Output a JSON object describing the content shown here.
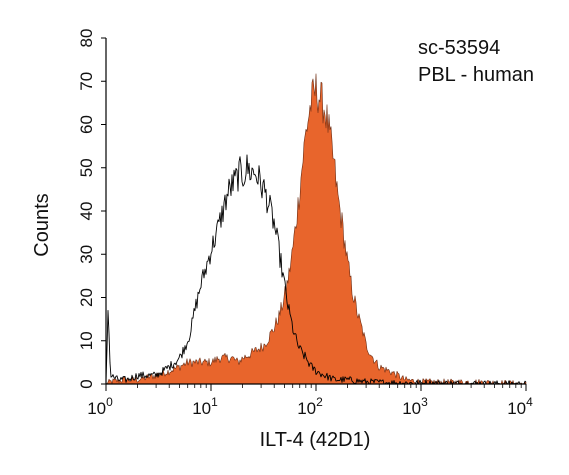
{
  "chart_data": {
    "type": "area",
    "xscale": "log",
    "xlim": [
      1,
      10000
    ],
    "ylim": [
      0,
      80
    ],
    "grid": false,
    "xlabel": "ILT-4 (42D1)",
    "ylabel": "Counts",
    "x_ticks": [
      {
        "value": 1,
        "base": "10",
        "exp": "0"
      },
      {
        "value": 10,
        "base": "10",
        "exp": "1"
      },
      {
        "value": 100,
        "base": "10",
        "exp": "2"
      },
      {
        "value": 1000,
        "base": "10",
        "exp": "3"
      },
      {
        "value": 10000,
        "base": "10",
        "exp": "4"
      }
    ],
    "y_ticks": [
      0,
      10,
      20,
      30,
      40,
      50,
      60,
      70,
      80
    ],
    "annotations": [
      "sc-53594",
      "PBL - human"
    ],
    "series": [
      {
        "style": "outline",
        "color": "#000000",
        "points": [
          [
            1.0,
            0
          ],
          [
            1.05,
            19
          ],
          [
            1.1,
            2
          ],
          [
            1.3,
            1
          ],
          [
            1.6,
            1
          ],
          [
            2,
            2
          ],
          [
            2.5,
            2
          ],
          [
            3,
            2
          ],
          [
            3.5,
            3
          ],
          [
            4,
            4
          ],
          [
            4.5,
            5
          ],
          [
            5,
            6
          ],
          [
            5.5,
            8
          ],
          [
            6,
            10
          ],
          [
            6.5,
            13
          ],
          [
            7,
            17
          ],
          [
            7.5,
            20
          ],
          [
            8,
            23
          ],
          [
            9,
            27
          ],
          [
            10,
            31
          ],
          [
            11,
            34
          ],
          [
            12,
            37
          ],
          [
            13,
            40
          ],
          [
            14,
            43
          ],
          [
            15,
            45
          ],
          [
            16,
            46
          ],
          [
            17,
            47
          ],
          [
            18,
            48
          ],
          [
            19,
            49
          ],
          [
            20,
            48
          ],
          [
            21,
            49
          ],
          [
            22,
            50
          ],
          [
            24,
            49
          ],
          [
            26,
            49
          ],
          [
            28,
            48
          ],
          [
            30,
            46
          ],
          [
            32,
            45
          ],
          [
            34,
            43
          ],
          [
            36,
            41
          ],
          [
            40,
            37
          ],
          [
            45,
            30
          ],
          [
            50,
            23
          ],
          [
            55,
            17
          ],
          [
            60,
            13
          ],
          [
            65,
            10
          ],
          [
            70,
            8
          ],
          [
            80,
            6
          ],
          [
            90,
            4
          ],
          [
            100,
            3
          ],
          [
            120,
            2
          ],
          [
            150,
            1
          ],
          [
            200,
            1
          ],
          [
            300,
            0.5
          ],
          [
            500,
            0.3
          ],
          [
            1000,
            0.2
          ],
          [
            10000,
            0
          ]
        ]
      },
      {
        "style": "filled",
        "color": "#E8652C",
        "points": [
          [
            1.0,
            0
          ],
          [
            1.1,
            0.5
          ],
          [
            1.5,
            1
          ],
          [
            2,
            1
          ],
          [
            3,
            2
          ],
          [
            4,
            3
          ],
          [
            5,
            4
          ],
          [
            6,
            5
          ],
          [
            7,
            5
          ],
          [
            8,
            5
          ],
          [
            10,
            5
          ],
          [
            12,
            6
          ],
          [
            14,
            6
          ],
          [
            16,
            6
          ],
          [
            18,
            5
          ],
          [
            20,
            6
          ],
          [
            24,
            7
          ],
          [
            28,
            8
          ],
          [
            32,
            9
          ],
          [
            36,
            11
          ],
          [
            40,
            13
          ],
          [
            45,
            16
          ],
          [
            50,
            20
          ],
          [
            55,
            25
          ],
          [
            60,
            31
          ],
          [
            65,
            38
          ],
          [
            70,
            45
          ],
          [
            75,
            52
          ],
          [
            80,
            58
          ],
          [
            85,
            62
          ],
          [
            90,
            65
          ],
          [
            95,
            67
          ],
          [
            100,
            68
          ],
          [
            105,
            67
          ],
          [
            110,
            66
          ],
          [
            120,
            64
          ],
          [
            130,
            60
          ],
          [
            140,
            55
          ],
          [
            150,
            50
          ],
          [
            160,
            44
          ],
          [
            180,
            36
          ],
          [
            200,
            28
          ],
          [
            220,
            22
          ],
          [
            250,
            16
          ],
          [
            280,
            12
          ],
          [
            300,
            9
          ],
          [
            350,
            6
          ],
          [
            400,
            4
          ],
          [
            500,
            3
          ],
          [
            600,
            2
          ],
          [
            700,
            1
          ],
          [
            1000,
            0.5
          ],
          [
            2000,
            0.4
          ],
          [
            3000,
            0.5
          ],
          [
            5000,
            0.3
          ],
          [
            10000,
            0
          ]
        ]
      }
    ]
  }
}
